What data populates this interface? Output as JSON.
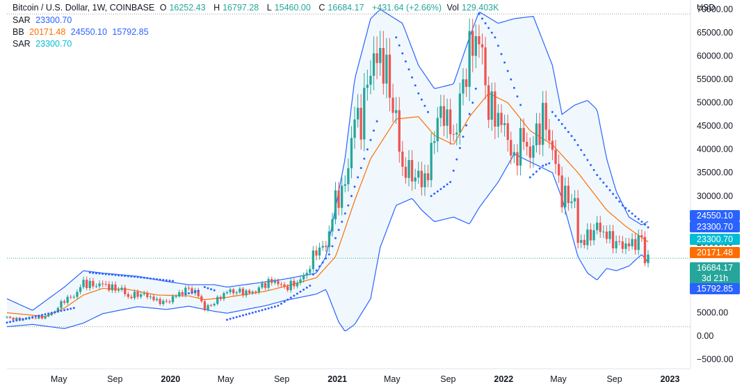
{
  "legend": {
    "symbol": "Bitcoin / U.S. Dollar, 1W, COINBASE",
    "o_label": "O",
    "o_value": "16252.43",
    "h_label": "H",
    "h_value": "16797.28",
    "l_label": "L",
    "l_value": "15460.00",
    "c_label": "C",
    "c_value": "16684.17",
    "change": "+431.64 (+2.66%)",
    "vol_label": "Vol",
    "vol_value": "129.403K",
    "sar1_label": "SAR",
    "sar1_value": "23300.70",
    "bb_label": "BB",
    "bb_middle": "20171.48",
    "bb_upper": "24550.10",
    "bb_lower": "15792.85",
    "sar2_label": "SAR",
    "sar2_value": "23300.70"
  },
  "price_tags": {
    "bb_upper": "24550.10",
    "sar1": "23300.70",
    "sar2": "23300.70",
    "bb_middle": "20171.48",
    "last_price": "16684.17",
    "countdown": "3d 21h",
    "bb_lower": "15792.85"
  },
  "colors": {
    "up": "#26a69a",
    "down": "#ef5350",
    "bb_band": "#2962ff",
    "bb_middle": "#ff6d00",
    "bb_fill": "#e3f2fd",
    "sar": "#2962ff",
    "tag_blue": "#2962ff",
    "tag_cyan": "#00bcd4",
    "tag_orange": "#ff6d00",
    "tag_green": "#26a69a",
    "crosshair": "#9598a1"
  },
  "chart_data": {
    "type": "candlestick",
    "title": "Bitcoin / U.S. Dollar, 1W, COINBASE",
    "currency": "USD",
    "ylim": [
      -7000,
      72000
    ],
    "yticks": [
      -5000,
      0,
      5000,
      10000,
      15000,
      20000,
      25000,
      30000,
      35000,
      40000,
      45000,
      50000,
      55000,
      60000,
      65000,
      70000
    ],
    "ytick_labels": [
      "−5000.00",
      "0.00",
      "5000.00",
      "10000.00",
      "15000.00",
      "20000.00",
      "25000.00",
      "30000.00",
      "35000.00",
      "40000.00",
      "45000.00",
      "50000.00",
      "55000.00",
      "60000.00",
      "65000.00",
      "70000.00"
    ],
    "xlim": [
      "2019-01-07",
      "2023-02-15"
    ],
    "xticks": [
      {
        "date": "2019-05-01",
        "label": "May",
        "bold": false
      },
      {
        "date": "2019-09-01",
        "label": "Sep",
        "bold": false
      },
      {
        "date": "2020-01-01",
        "label": "2020",
        "bold": true
      },
      {
        "date": "2020-05-01",
        "label": "May",
        "bold": false
      },
      {
        "date": "2020-09-01",
        "label": "Sep",
        "bold": false
      },
      {
        "date": "2021-01-01",
        "label": "2021",
        "bold": true
      },
      {
        "date": "2021-05-01",
        "label": "May",
        "bold": false
      },
      {
        "date": "2021-09-01",
        "label": "Sep",
        "bold": false
      },
      {
        "date": "2022-01-01",
        "label": "2022",
        "bold": true
      },
      {
        "date": "2022-05-01",
        "label": "May",
        "bold": false
      },
      {
        "date": "2022-09-01",
        "label": "Sep",
        "bold": false
      },
      {
        "date": "2023-01-01",
        "label": "2023",
        "bold": true
      }
    ],
    "ath_line": 69000,
    "last_price_line": 16684.17,
    "close_keypoints": [
      [
        "2019-01-07",
        4000
      ],
      [
        "2019-02-04",
        3500
      ],
      [
        "2019-03-04",
        3900
      ],
      [
        "2019-04-01",
        4100
      ],
      [
        "2019-04-22",
        5300
      ],
      [
        "2019-05-13",
        7800
      ],
      [
        "2019-06-03",
        8500
      ],
      [
        "2019-06-24",
        11500
      ],
      [
        "2019-07-15",
        10800
      ],
      [
        "2019-08-05",
        11200
      ],
      [
        "2019-08-26",
        10200
      ],
      [
        "2019-09-16",
        10000
      ],
      [
        "2019-09-30",
        8300
      ],
      [
        "2019-10-21",
        9000
      ],
      [
        "2019-11-11",
        8700
      ],
      [
        "2019-12-02",
        7500
      ],
      [
        "2019-12-23",
        7200
      ],
      [
        "2020-01-13",
        8700
      ],
      [
        "2020-02-10",
        10200
      ],
      [
        "2020-03-02",
        8800
      ],
      [
        "2020-03-16",
        5800
      ],
      [
        "2020-04-06",
        7200
      ],
      [
        "2020-05-04",
        9600
      ],
      [
        "2020-06-01",
        9500
      ],
      [
        "2020-06-29",
        9300
      ],
      [
        "2020-07-27",
        11300
      ],
      [
        "2020-08-17",
        11800
      ],
      [
        "2020-09-07",
        10400
      ],
      [
        "2020-10-05",
        11400
      ],
      [
        "2020-10-26",
        13500
      ],
      [
        "2020-11-16",
        18500
      ],
      [
        "2020-12-07",
        19200
      ],
      [
        "2020-12-28",
        29000
      ],
      [
        "2021-01-18",
        32000
      ],
      [
        "2021-02-08",
        47000
      ],
      [
        "2021-02-22",
        46000
      ],
      [
        "2021-03-15",
        58000
      ],
      [
        "2021-04-05",
        60000
      ],
      [
        "2021-04-19",
        56000
      ],
      [
        "2021-05-10",
        46000
      ],
      [
        "2021-05-24",
        35600
      ],
      [
        "2021-06-14",
        35000
      ],
      [
        "2021-06-28",
        33500
      ],
      [
        "2021-07-19",
        34200
      ],
      [
        "2021-08-02",
        44500
      ],
      [
        "2021-08-23",
        48500
      ],
      [
        "2021-09-13",
        42000
      ],
      [
        "2021-10-04",
        54000
      ],
      [
        "2021-10-18",
        61000
      ],
      [
        "2021-11-08",
        64500
      ],
      [
        "2021-11-29",
        49000
      ],
      [
        "2021-12-20",
        47000
      ],
      [
        "2022-01-10",
        43000
      ],
      [
        "2022-01-24",
        36500
      ],
      [
        "2022-02-07",
        43000
      ],
      [
        "2022-02-28",
        39000
      ],
      [
        "2022-03-28",
        47000
      ],
      [
        "2022-04-18",
        40000
      ],
      [
        "2022-05-09",
        30000
      ],
      [
        "2022-06-06",
        29000
      ],
      [
        "2022-06-13",
        20000
      ],
      [
        "2022-07-04",
        21000
      ],
      [
        "2022-07-25",
        23500
      ],
      [
        "2022-08-15",
        21500
      ],
      [
        "2022-09-05",
        19800
      ],
      [
        "2022-09-26",
        19400
      ],
      [
        "2022-10-17",
        20000
      ],
      [
        "2022-10-31",
        21000
      ],
      [
        "2022-11-07",
        16500
      ],
      [
        "2022-11-14",
        16684
      ]
    ],
    "bb_middle_keypoints": [
      [
        "2019-01-07",
        5000
      ],
      [
        "2019-04-01",
        4200
      ],
      [
        "2019-05-13",
        6000
      ],
      [
        "2019-06-24",
        8800
      ],
      [
        "2019-08-05",
        10200
      ],
      [
        "2019-09-30",
        10000
      ],
      [
        "2019-12-02",
        8800
      ],
      [
        "2020-02-10",
        8600
      ],
      [
        "2020-03-16",
        7800
      ],
      [
        "2020-05-04",
        8300
      ],
      [
        "2020-07-27",
        9600
      ],
      [
        "2020-09-07",
        10600
      ],
      [
        "2020-11-16",
        12500
      ],
      [
        "2020-12-28",
        17000
      ],
      [
        "2021-02-08",
        29000
      ],
      [
        "2021-03-15",
        38000
      ],
      [
        "2021-05-10",
        46500
      ],
      [
        "2021-06-28",
        47000
      ],
      [
        "2021-08-02",
        43000
      ],
      [
        "2021-09-13",
        41000
      ],
      [
        "2021-10-18",
        47000
      ],
      [
        "2021-11-29",
        52000
      ],
      [
        "2022-01-10",
        50000
      ],
      [
        "2022-02-28",
        44000
      ],
      [
        "2022-04-18",
        41000
      ],
      [
        "2022-06-13",
        35000
      ],
      [
        "2022-08-15",
        27000
      ],
      [
        "2022-09-26",
        23500
      ],
      [
        "2022-11-14",
        20171
      ]
    ],
    "bb_upper_keypoints": [
      [
        "2019-01-07",
        8000
      ],
      [
        "2019-03-04",
        5500
      ],
      [
        "2019-05-13",
        10500
      ],
      [
        "2019-06-24",
        14000
      ],
      [
        "2019-08-05",
        13500
      ],
      [
        "2019-10-21",
        12800
      ],
      [
        "2019-12-23",
        11700
      ],
      [
        "2020-02-10",
        11000
      ],
      [
        "2020-04-06",
        11000
      ],
      [
        "2020-05-04",
        10500
      ],
      [
        "2020-07-27",
        11600
      ],
      [
        "2020-09-07",
        12200
      ],
      [
        "2020-11-16",
        13500
      ],
      [
        "2020-12-07",
        17000
      ],
      [
        "2021-01-18",
        38000
      ],
      [
        "2021-02-08",
        55000
      ],
      [
        "2021-03-15",
        68000
      ],
      [
        "2021-04-05",
        70000
      ],
      [
        "2021-05-24",
        67000
      ],
      [
        "2021-06-28",
        58000
      ],
      [
        "2021-08-02",
        53000
      ],
      [
        "2021-09-13",
        54000
      ],
      [
        "2021-10-18",
        64000
      ],
      [
        "2021-11-08",
        69500
      ],
      [
        "2021-12-20",
        67000
      ],
      [
        "2022-01-24",
        68000
      ],
      [
        "2022-03-07",
        68500
      ],
      [
        "2022-04-18",
        58000
      ],
      [
        "2022-05-09",
        47500
      ],
      [
        "2022-06-06",
        49500
      ],
      [
        "2022-07-04",
        50500
      ],
      [
        "2022-07-25",
        48500
      ],
      [
        "2022-08-15",
        38000
      ],
      [
        "2022-09-05",
        31000
      ],
      [
        "2022-10-03",
        25500
      ],
      [
        "2022-10-31",
        23800
      ],
      [
        "2022-11-14",
        24550
      ]
    ],
    "bb_lower_keypoints": [
      [
        "2019-01-07",
        2000
      ],
      [
        "2019-03-04",
        2500
      ],
      [
        "2019-05-13",
        1600
      ],
      [
        "2019-06-24",
        2800
      ],
      [
        "2019-08-05",
        4800
      ],
      [
        "2019-10-21",
        6300
      ],
      [
        "2019-12-23",
        5700
      ],
      [
        "2020-02-10",
        6400
      ],
      [
        "2020-04-06",
        5300
      ],
      [
        "2020-05-04",
        4900
      ],
      [
        "2020-07-27",
        6500
      ],
      [
        "2020-09-07",
        7600
      ],
      [
        "2020-11-16",
        9000
      ],
      [
        "2020-12-07",
        10000
      ],
      [
        "2021-01-04",
        3000
      ],
      [
        "2021-01-18",
        1000
      ],
      [
        "2021-02-08",
        2500
      ],
      [
        "2021-03-15",
        8000
      ],
      [
        "2021-04-05",
        19000
      ],
      [
        "2021-05-10",
        28000
      ],
      [
        "2021-06-14",
        29500
      ],
      [
        "2021-07-05",
        27000
      ],
      [
        "2021-08-02",
        24500
      ],
      [
        "2021-09-13",
        25500
      ],
      [
        "2021-10-18",
        24000
      ],
      [
        "2021-11-08",
        27500
      ],
      [
        "2021-12-20",
        33000
      ],
      [
        "2022-01-24",
        39000
      ],
      [
        "2022-03-07",
        37000
      ],
      [
        "2022-04-18",
        35000
      ],
      [
        "2022-05-09",
        29500
      ],
      [
        "2022-06-13",
        17000
      ],
      [
        "2022-07-04",
        13500
      ],
      [
        "2022-07-25",
        12000
      ],
      [
        "2022-08-15",
        14500
      ],
      [
        "2022-09-05",
        14000
      ],
      [
        "2022-10-03",
        15000
      ],
      [
        "2022-10-31",
        17500
      ],
      [
        "2022-11-14",
        15792.85
      ]
    ],
    "sar_segments": [
      [
        [
          "2019-01-07",
          2900
        ],
        [
          "2019-06-03",
          6000
        ]
      ],
      [
        [
          "2019-07-08",
          13600
        ],
        [
          "2019-10-14",
          12700
        ],
        [
          "2020-01-06",
          11800
        ]
      ],
      [
        [
          "2020-02-03",
          9000
        ],
        [
          "2020-03-02",
          9700
        ]
      ],
      [
        [
          "2020-03-16",
          10500
        ],
        [
          "2020-04-06",
          9800
        ]
      ],
      [
        [
          "2020-05-04",
          3500
        ],
        [
          "2020-08-24",
          6500
        ],
        [
          "2020-11-02",
          10800
        ]
      ],
      [
        [
          "2020-11-09",
          13200
        ],
        [
          "2020-12-14",
          17500
        ],
        [
          "2021-01-25",
          28000
        ],
        [
          "2021-03-29",
          46000
        ]
      ],
      [
        [
          "2021-05-10",
          64000
        ],
        [
          "2021-06-28",
          52000
        ],
        [
          "2021-07-19",
          48000
        ]
      ],
      [
        [
          "2021-07-26",
          30000
        ],
        [
          "2021-09-06",
          33000
        ],
        [
          "2021-10-25",
          50000
        ],
        [
          "2021-11-01",
          53000
        ]
      ],
      [
        [
          "2021-11-08",
          69000
        ],
        [
          "2021-12-13",
          64000
        ],
        [
          "2022-01-17",
          55000
        ],
        [
          "2022-02-07",
          49500
        ]
      ],
      [
        [
          "2022-02-28",
          34000
        ],
        [
          "2022-03-28",
          36500
        ],
        [
          "2022-04-11",
          37000
        ]
      ],
      [
        [
          "2022-04-18",
          48000
        ],
        [
          "2022-06-06",
          42000
        ],
        [
          "2022-07-25",
          34500
        ],
        [
          "2022-09-19",
          28000
        ],
        [
          "2022-11-14",
          23300.7
        ]
      ]
    ]
  }
}
